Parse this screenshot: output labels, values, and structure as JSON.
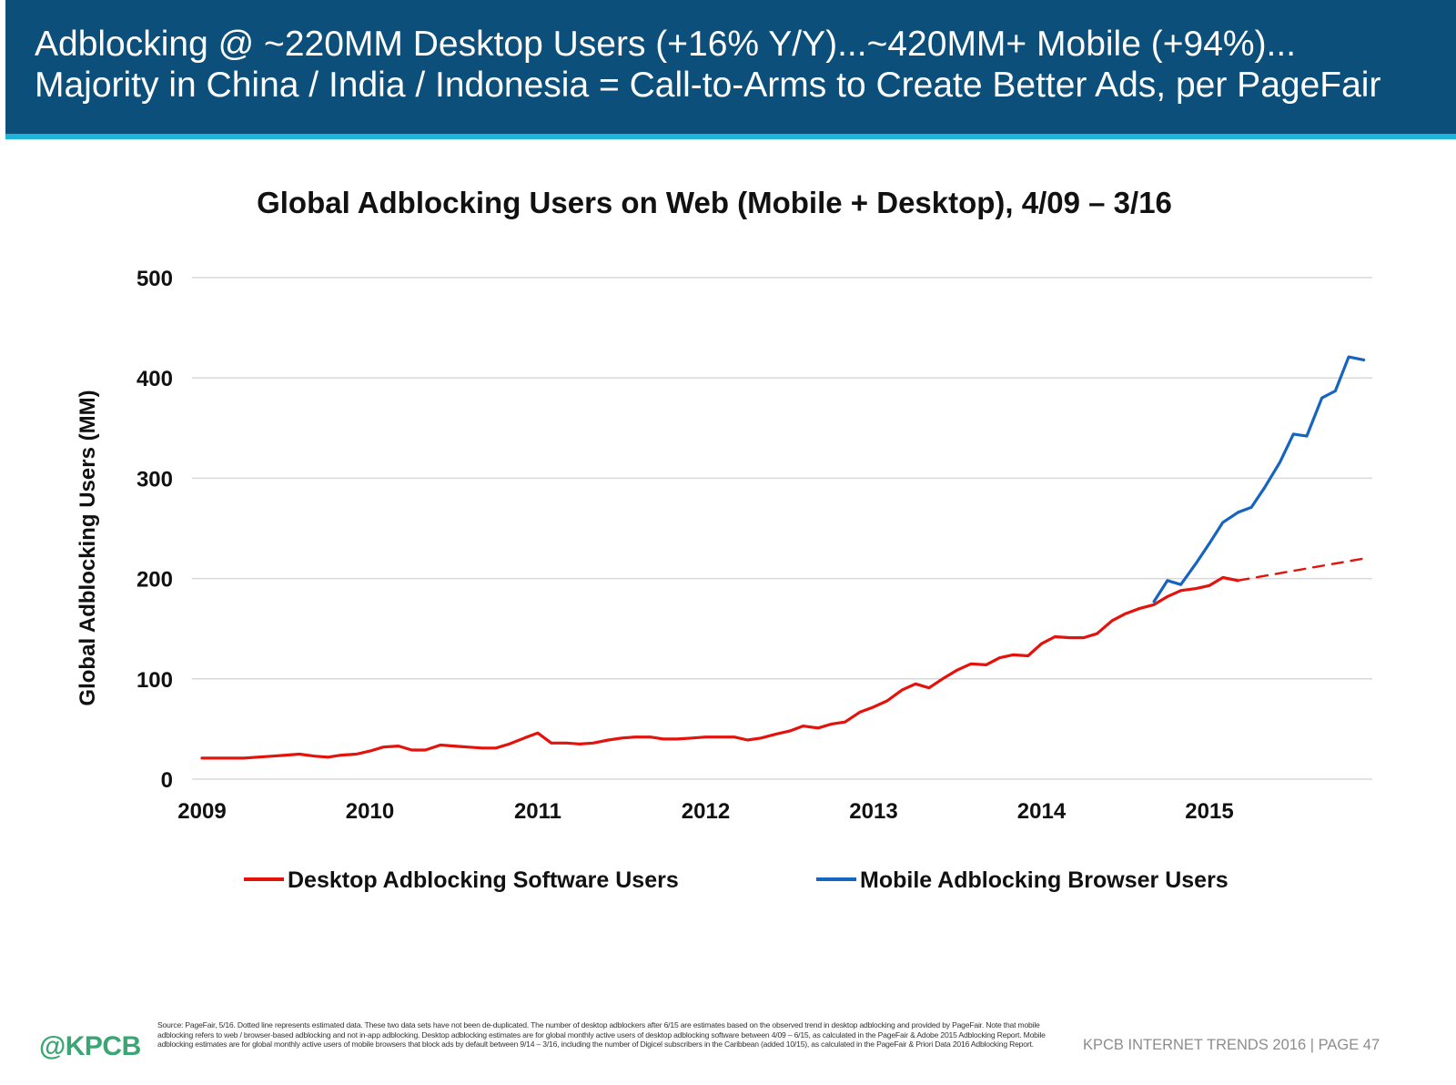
{
  "header": {
    "line1": "Adblocking @ ~220MM Desktop Users (+16% Y/Y)...~420MM+ Mobile (+94%)...",
    "line2": "Majority in China / India / Indonesia = Call-to-Arms to Create Better Ads, per PageFair"
  },
  "chart_data": {
    "type": "line",
    "title": "Global Adblocking Users on Web (Mobile + Desktop), 4/09 – 3/16",
    "xlabel": "",
    "ylabel": "Global Adblocking Users (MM)",
    "xlim": [
      2009,
      2016.0
    ],
    "ylim": [
      0,
      500
    ],
    "x_ticks": [
      2009,
      2010,
      2011,
      2012,
      2013,
      2014,
      2015
    ],
    "y_ticks": [
      0,
      100,
      200,
      300,
      400,
      500
    ],
    "grid": "horizontal",
    "legend_position": "bottom",
    "series": [
      {
        "name": "Desktop Adblocking Software Users",
        "color": "#e3120b",
        "style": "solid",
        "points": [
          [
            2009.0,
            21
          ],
          [
            2009.08,
            21
          ],
          [
            2009.17,
            21
          ],
          [
            2009.25,
            21
          ],
          [
            2009.33,
            22
          ],
          [
            2009.42,
            23
          ],
          [
            2009.5,
            24
          ],
          [
            2009.58,
            25
          ],
          [
            2009.67,
            23
          ],
          [
            2009.75,
            22
          ],
          [
            2009.83,
            24
          ],
          [
            2009.92,
            25
          ],
          [
            2010.0,
            28
          ],
          [
            2010.08,
            32
          ],
          [
            2010.17,
            33
          ],
          [
            2010.25,
            29
          ],
          [
            2010.33,
            29
          ],
          [
            2010.42,
            34
          ],
          [
            2010.5,
            33
          ],
          [
            2010.58,
            32
          ],
          [
            2010.67,
            31
          ],
          [
            2010.75,
            31
          ],
          [
            2010.83,
            35
          ],
          [
            2010.92,
            41
          ],
          [
            2011.0,
            46
          ],
          [
            2011.08,
            36
          ],
          [
            2011.17,
            36
          ],
          [
            2011.25,
            35
          ],
          [
            2011.33,
            36
          ],
          [
            2011.42,
            39
          ],
          [
            2011.5,
            41
          ],
          [
            2011.58,
            42
          ],
          [
            2011.67,
            42
          ],
          [
            2011.75,
            40
          ],
          [
            2011.83,
            40
          ],
          [
            2011.92,
            41
          ],
          [
            2012.0,
            42
          ],
          [
            2012.08,
            42
          ],
          [
            2012.17,
            42
          ],
          [
            2012.25,
            39
          ],
          [
            2012.33,
            41
          ],
          [
            2012.42,
            45
          ],
          [
            2012.5,
            48
          ],
          [
            2012.58,
            53
          ],
          [
            2012.67,
            51
          ],
          [
            2012.75,
            55
          ],
          [
            2012.83,
            57
          ],
          [
            2012.92,
            67
          ],
          [
            2013.0,
            72
          ],
          [
            2013.08,
            78
          ],
          [
            2013.17,
            89
          ],
          [
            2013.25,
            95
          ],
          [
            2013.33,
            91
          ],
          [
            2013.42,
            101
          ],
          [
            2013.5,
            109
          ],
          [
            2013.58,
            115
          ],
          [
            2013.67,
            114
          ],
          [
            2013.75,
            121
          ],
          [
            2013.83,
            124
          ],
          [
            2013.92,
            123
          ],
          [
            2014.0,
            135
          ],
          [
            2014.08,
            142
          ],
          [
            2014.17,
            141
          ],
          [
            2014.25,
            141
          ],
          [
            2014.33,
            145
          ],
          [
            2014.42,
            158
          ],
          [
            2014.5,
            165
          ],
          [
            2014.58,
            170
          ],
          [
            2014.67,
            174
          ],
          [
            2014.75,
            182
          ],
          [
            2014.83,
            188
          ],
          [
            2014.92,
            190
          ],
          [
            2015.0,
            193
          ],
          [
            2015.08,
            201
          ],
          [
            2015.17,
            198
          ]
        ]
      },
      {
        "name": "Desktop Adblocking Software Users (estimated)",
        "color": "#e3120b",
        "style": "dashed",
        "points": [
          [
            2015.17,
            198
          ],
          [
            2015.92,
            220
          ]
        ]
      },
      {
        "name": "Mobile Adblocking Browser Users",
        "color": "#1565c0",
        "style": "solid",
        "points": [
          [
            2014.67,
            177
          ],
          [
            2014.75,
            198
          ],
          [
            2014.83,
            194
          ],
          [
            2014.92,
            215
          ],
          [
            2015.0,
            235
          ],
          [
            2015.08,
            256
          ],
          [
            2015.17,
            266
          ],
          [
            2015.25,
            271
          ],
          [
            2015.33,
            291
          ],
          [
            2015.42,
            316
          ],
          [
            2015.5,
            344
          ],
          [
            2015.58,
            342
          ],
          [
            2015.67,
            380
          ],
          [
            2015.75,
            387
          ],
          [
            2015.83,
            421
          ],
          [
            2015.92,
            418
          ]
        ]
      }
    ],
    "legend": [
      {
        "label": "Desktop Adblocking Software Users",
        "color": "#e3120b"
      },
      {
        "label": "Mobile Adblocking Browser Users",
        "color": "#1565c0"
      }
    ]
  },
  "footer": {
    "source": "Source: PageFair, 5/16. Dotted line represents estimated data. These two data sets have not been de-duplicated. The number of desktop adblockers after 6/15 are estimates based on the observed trend in desktop adblocking and provided by PageFair. Note that mobile adblocking refers to web / browser-based adblocking and not in-app adblocking. Desktop adblocking estimates are for global monthly active users of desktop adblocking software between 4/09 – 6/15, as calculated in the PageFair & Adobe 2015 Adblocking Report. Mobile adblocking estimates are for global monthly active users of mobile browsers that block ads by default between 9/14 – 3/16, including the number of Digicel subscribers in the Caribbean (added 10/15), as calculated in the PageFair & Priori Data 2016 Adblocking Report.",
    "logo": "@KPCB",
    "page_ref": "KPCB INTERNET TRENDS 2016   |   PAGE 47"
  }
}
